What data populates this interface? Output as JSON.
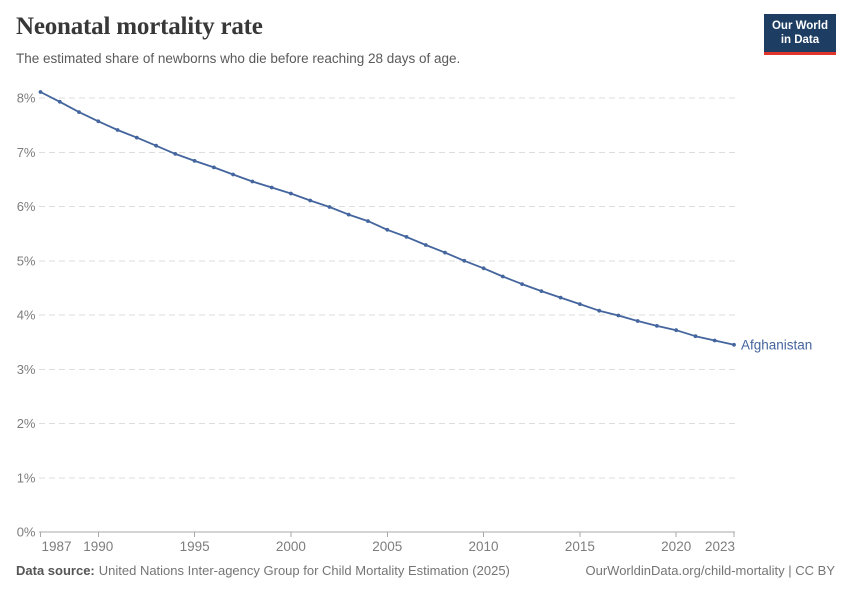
{
  "header": {
    "title": "Neonatal mortality rate",
    "subtitle": "The estimated share of newborns who die before reaching 28 days of age.",
    "logo": {
      "line1": "Our World",
      "line2": "in Data"
    }
  },
  "footer": {
    "datasource_label": "Data source:",
    "datasource_text": "United Nations Inter-agency Group for Child Mortality Estimation (2025)",
    "link_text": "OurWorldinData.org/child-mortality | CC BY"
  },
  "colors": {
    "line": "#44659E",
    "entity_label": "#44659E",
    "grid": "#dddddd",
    "axis": "#a8a8a8",
    "tick_label": "#7d7d7d",
    "title": "#383838",
    "subtitle": "#5a5a5a",
    "logo_bg": "#1d3d63",
    "logo_accent": "#e0342c"
  },
  "chart_data": {
    "type": "line",
    "title": "Neonatal mortality rate",
    "xlabel": "",
    "ylabel": "",
    "x": [
      1987,
      1988,
      1989,
      1990,
      1991,
      1992,
      1993,
      1994,
      1995,
      1996,
      1997,
      1998,
      1999,
      2000,
      2001,
      2002,
      2003,
      2004,
      2005,
      2006,
      2007,
      2008,
      2009,
      2010,
      2011,
      2012,
      2013,
      2014,
      2015,
      2016,
      2017,
      2018,
      2019,
      2020,
      2021,
      2022,
      2023
    ],
    "series": [
      {
        "name": "Afghanistan",
        "color": "#44659E",
        "values": [
          8.11,
          7.93,
          7.74,
          7.57,
          7.41,
          7.27,
          7.12,
          6.97,
          6.84,
          6.72,
          6.59,
          6.46,
          6.35,
          6.24,
          6.11,
          5.99,
          5.85,
          5.73,
          5.57,
          5.44,
          5.29,
          5.15,
          5.0,
          4.86,
          4.71,
          4.57,
          4.44,
          4.32,
          4.2,
          4.08,
          3.99,
          3.89,
          3.8,
          3.72,
          3.61,
          3.53,
          3.45
        ]
      }
    ],
    "entity_label": "Afghanistan",
    "x_ticks": [
      1987,
      1990,
      1995,
      2000,
      2005,
      2010,
      2015,
      2020,
      2023
    ],
    "y_ticks": [
      0,
      1,
      2,
      3,
      4,
      5,
      6,
      7,
      8
    ],
    "y_tick_suffix": "%",
    "xlim": [
      1987,
      2023
    ],
    "ylim": [
      0,
      8
    ],
    "grid": "horizontal-dashed",
    "legend_position": "line-end"
  }
}
